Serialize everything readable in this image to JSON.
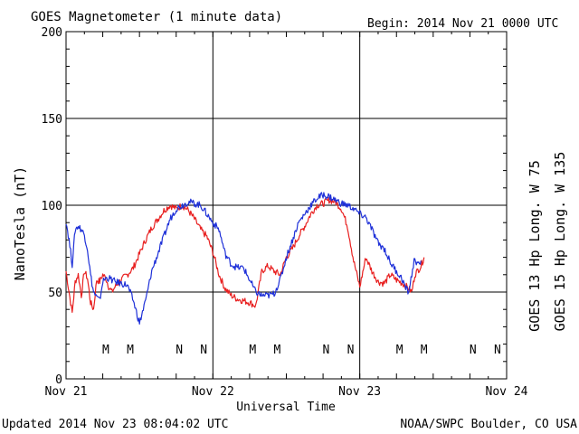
{
  "header": {
    "title": "GOES Magnetometer (1 minute data)",
    "begin": "Begin:  2014 Nov 21 0000 UTC"
  },
  "footer": {
    "updated": "Updated 2014 Nov 23 08:04:02 UTC",
    "source": "NOAA/SWPC Boulder, CO USA"
  },
  "legend": [
    {
      "text": "GOES 13 Hp  Long. W 75",
      "color": "#e82020"
    },
    {
      "text": "GOES 15 Hp  Long. W 135",
      "color": "#1e30d8"
    }
  ],
  "markers": {
    "note": "",
    "items": [
      {
        "label": "M",
        "hour": 6.5,
        "color": "#e82020"
      },
      {
        "label": "M",
        "hour": 10.5,
        "color": "#1e30d8"
      },
      {
        "label": "N",
        "hour": 18.5,
        "color": "#e82020"
      },
      {
        "label": "N",
        "hour": 22.5,
        "color": "#1e30d8"
      },
      {
        "label": "M",
        "hour": 30.5,
        "color": "#e82020"
      },
      {
        "label": "M",
        "hour": 34.5,
        "color": "#1e30d8"
      },
      {
        "label": "N",
        "hour": 42.5,
        "color": "#e82020"
      },
      {
        "label": "N",
        "hour": 46.5,
        "color": "#1e30d8"
      },
      {
        "label": "M",
        "hour": 54.5,
        "color": "#e82020"
      },
      {
        "label": "M",
        "hour": 58.5,
        "color": "#1e30d8"
      },
      {
        "label": "N",
        "hour": 66.5,
        "color": "#e82020"
      },
      {
        "label": "N",
        "hour": 70.5,
        "color": "#1e30d8"
      }
    ]
  },
  "chart_data": {
    "type": "line",
    "title": "GOES Magnetometer (1 minute data)",
    "xlabel": "Universal Time",
    "ylabel": "NanoTesla (nT)",
    "xlim": [
      "2014-11-21 00:00",
      "2014-11-24 00:00"
    ],
    "ylim": [
      0,
      200
    ],
    "x_ticks": [
      "Nov 21",
      "Nov 22",
      "Nov 23",
      "Nov 24"
    ],
    "y_ticks": [
      0,
      50,
      100,
      150,
      200
    ],
    "grid": true,
    "x_units": "hours since 2014-11-21 00:00 UTC",
    "series": [
      {
        "name": "GOES 13 Hp  Long. W 75",
        "color": "#e82020",
        "x": [
          0,
          0.5,
          1,
          1.5,
          2,
          2.5,
          3,
          3.5,
          4,
          4.5,
          5,
          5.5,
          6,
          6.5,
          7,
          7.5,
          8,
          9,
          10,
          11,
          12,
          13,
          14,
          15,
          16,
          17,
          18,
          19,
          20,
          21,
          22,
          23,
          24,
          25,
          26,
          27,
          28,
          29,
          30,
          31,
          32,
          33,
          34,
          35,
          36,
          37,
          38,
          39,
          40,
          41,
          42,
          43,
          44,
          45,
          46,
          47,
          48,
          49,
          50,
          51,
          52,
          53,
          54,
          55,
          56,
          56.5,
          57,
          58,
          58.5
        ],
        "y": [
          62,
          50,
          38,
          56,
          60,
          48,
          62,
          58,
          44,
          40,
          57,
          56,
          60,
          58,
          53,
          50,
          53,
          57,
          60,
          64,
          72,
          80,
          87,
          92,
          97,
          100,
          98,
          100,
          97,
          92,
          86,
          82,
          73,
          60,
          52,
          48,
          46,
          45,
          44,
          42,
          62,
          65,
          62,
          60,
          70,
          75,
          82,
          88,
          95,
          100,
          101,
          103,
          102,
          98,
          88,
          68,
          53,
          70,
          62,
          56,
          55,
          60,
          57,
          55,
          52,
          50,
          60,
          65,
          70
        ]
      },
      {
        "name": "GOES 15 Hp  Long. W 135",
        "color": "#1e30d8",
        "x": [
          0,
          0.5,
          1,
          1.5,
          2,
          2.5,
          3,
          3.5,
          4,
          4.5,
          5,
          5.5,
          6,
          6.5,
          7,
          8,
          9,
          10,
          11,
          12,
          13,
          14,
          15,
          16,
          17,
          18,
          19,
          20,
          21,
          22,
          23,
          24,
          25,
          26,
          27,
          28,
          29,
          30,
          31,
          32,
          33,
          34,
          35,
          36,
          37,
          38,
          39,
          40,
          41,
          42,
          43,
          44,
          45,
          46,
          47,
          48,
          49,
          50,
          51,
          52,
          53,
          54,
          55,
          55.5,
          56,
          56.5,
          57,
          57.5,
          58
        ],
        "y": [
          91,
          80,
          66,
          86,
          88,
          86,
          83,
          75,
          60,
          50,
          47,
          45,
          56,
          58,
          58,
          56,
          55,
          54,
          45,
          32,
          45,
          62,
          72,
          82,
          92,
          98,
          100,
          102,
          101,
          100,
          95,
          90,
          86,
          72,
          66,
          64,
          64,
          57,
          50,
          48,
          48,
          49,
          57,
          70,
          80,
          90,
          95,
          100,
          104,
          106,
          105,
          103,
          101,
          100,
          98,
          95,
          93,
          86,
          78,
          75,
          67,
          62,
          57,
          52,
          50,
          60,
          70,
          65,
          68
        ]
      }
    ]
  }
}
